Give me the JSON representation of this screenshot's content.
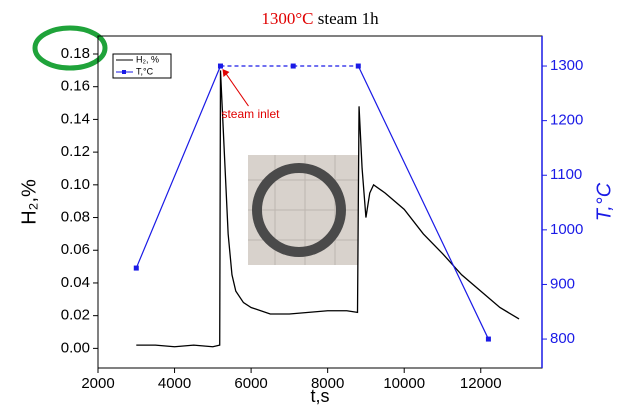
{
  "chart_data": {
    "type": "line",
    "title_parts": [
      {
        "text": "1300°C",
        "color": "#e00000"
      },
      {
        "text": "steam 1h",
        "color": "#000000"
      }
    ],
    "xlabel": "t,s",
    "ylabel": "H₂,%",
    "y2label": "T,°C",
    "xlim": [
      2000,
      13600
    ],
    "xticks": [
      2000,
      4000,
      6000,
      8000,
      10000,
      12000
    ],
    "ylim": [
      -0.012,
      0.191
    ],
    "yticks": [
      {
        "value": 0,
        "label": "0.00"
      },
      {
        "value": 0.02,
        "label": "0.02"
      },
      {
        "value": 0.04,
        "label": "0.04"
      },
      {
        "value": 0.06,
        "label": "0.06"
      },
      {
        "value": 0.08,
        "label": "0.08"
      },
      {
        "value": 0.1,
        "label": "0.10"
      },
      {
        "value": 0.12,
        "label": "0.12"
      },
      {
        "value": 0.14,
        "label": "0.14"
      },
      {
        "value": 0.16,
        "label": "0.16"
      },
      {
        "value": 0.18,
        "label": "0.18"
      }
    ],
    "y2lim": [
      747,
      1355
    ],
    "y2ticks": [
      800,
      900,
      1000,
      1100,
      1200,
      1300
    ],
    "y2color": "#1a1ae6",
    "legend": "upper left",
    "annotations": [
      {
        "text": "steam inlet",
        "color": "#e00000",
        "x": 5200,
        "y": 1300,
        "axis": "y2"
      }
    ],
    "series": [
      {
        "name": "H₂, %",
        "color": "#000000",
        "x": [
          3000,
          3500,
          4000,
          4500,
          5000,
          5180,
          5200,
          5300,
          5400,
          5500,
          5600,
          5800,
          6000,
          6500,
          7000,
          7500,
          8000,
          8500,
          8780,
          8820,
          8900,
          9000,
          9100,
          9200,
          9500,
          10000,
          10500,
          11000,
          11500,
          12000,
          12500,
          13000
        ],
        "values": [
          0.002,
          0.002,
          0.001,
          0.002,
          0.001,
          0.002,
          0.17,
          0.12,
          0.07,
          0.045,
          0.035,
          0.028,
          0.025,
          0.021,
          0.021,
          0.022,
          0.023,
          0.023,
          0.022,
          0.148,
          0.11,
          0.08,
          0.095,
          0.1,
          0.095,
          0.085,
          0.07,
          0.058,
          0.045,
          0.035,
          0.025,
          0.018
        ]
      },
      {
        "name": "T,°C",
        "color": "#1a1ae6",
        "axis": "y2",
        "marker": "square",
        "segment_styles": [
          "solid",
          "dashed",
          "dashed",
          "solid"
        ],
        "x": [
          3000,
          5200,
          7100,
          8800,
          12200
        ],
        "values": [
          930,
          1300,
          1300,
          1300,
          800
        ]
      }
    ]
  }
}
